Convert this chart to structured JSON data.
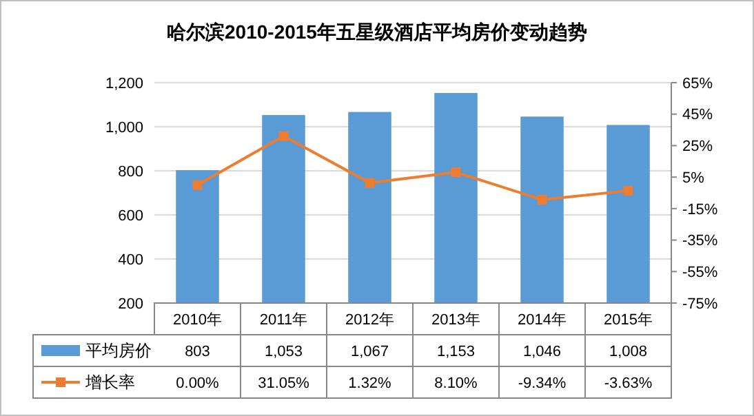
{
  "chart_data": {
    "type": "bar",
    "title": "哈尔滨2010-2015年五星级酒店平均房价变动趋势",
    "categories": [
      "2010年",
      "2011年",
      "2012年",
      "2013年",
      "2014年",
      "2015年"
    ],
    "series": [
      {
        "name": "平均房价",
        "color": "#5b9bd5",
        "values": [
          803,
          1053,
          1067,
          1153,
          1046,
          1008
        ],
        "value_labels": [
          "803",
          "1,053",
          "1,067",
          "1,153",
          "1,046",
          "1,008"
        ]
      },
      {
        "name": "增长率",
        "type": "line",
        "axis": "y2",
        "color": "#ed7d31",
        "marker": "square",
        "values": [
          0.0,
          31.05,
          1.32,
          8.1,
          -9.34,
          -3.63
        ],
        "value_labels": [
          "0.00%",
          "31.05%",
          "1.32%",
          "8.10%",
          "-9.34%",
          "-3.63%"
        ]
      }
    ],
    "ylim": [
      200,
      1200
    ],
    "yticks": [
      200,
      400,
      600,
      800,
      {
        "value": 1000,
        "label": "1,000"
      },
      {
        "value": 1200,
        "label": "1,200"
      }
    ],
    "y2lim": [
      -75,
      65
    ],
    "y2ticks": [
      {
        "value": -75,
        "label": "-75%"
      },
      {
        "value": -55,
        "label": "-55%"
      },
      {
        "value": -35,
        "label": "-35%"
      },
      {
        "value": -15,
        "label": "-15%"
      },
      {
        "value": 5,
        "label": "5%"
      },
      {
        "value": 25,
        "label": "25%"
      },
      {
        "value": 45,
        "label": "45%"
      },
      {
        "value": 65,
        "label": "65%"
      }
    ],
    "grid": "y",
    "legend": "bottom left"
  }
}
